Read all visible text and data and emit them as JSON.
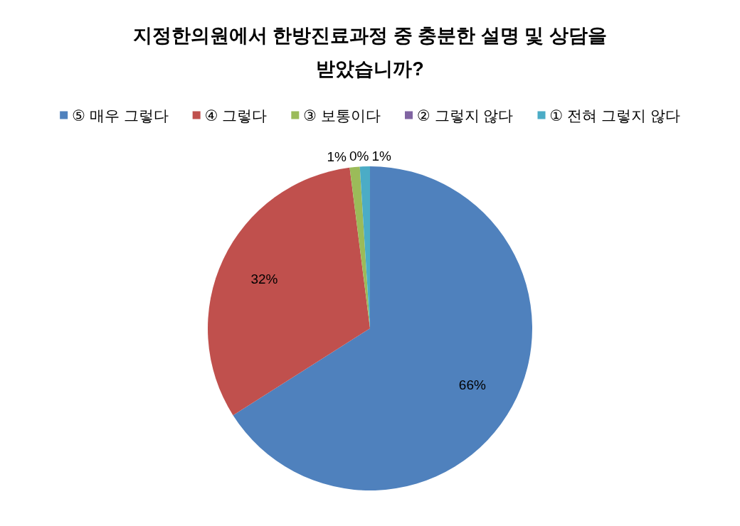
{
  "chart_data": {
    "type": "pie",
    "title": "지정한의원에서 한방진료과정 중 충분한 설명 및 상담을 받았습니까?",
    "categories": [
      "⑤ 매우 그렇다",
      "④ 그렇다",
      "③ 보통이다",
      "② 그렇지 않다",
      "① 전혀 그렇지 않다"
    ],
    "values": [
      66,
      32,
      1,
      0,
      1
    ],
    "colors": [
      "#4f81bd",
      "#c0504d",
      "#9bbb59",
      "#8064a2",
      "#4bacc6"
    ],
    "value_labels": [
      "66%",
      "32%",
      "1%",
      "0%",
      "1%"
    ],
    "legend": "top"
  }
}
